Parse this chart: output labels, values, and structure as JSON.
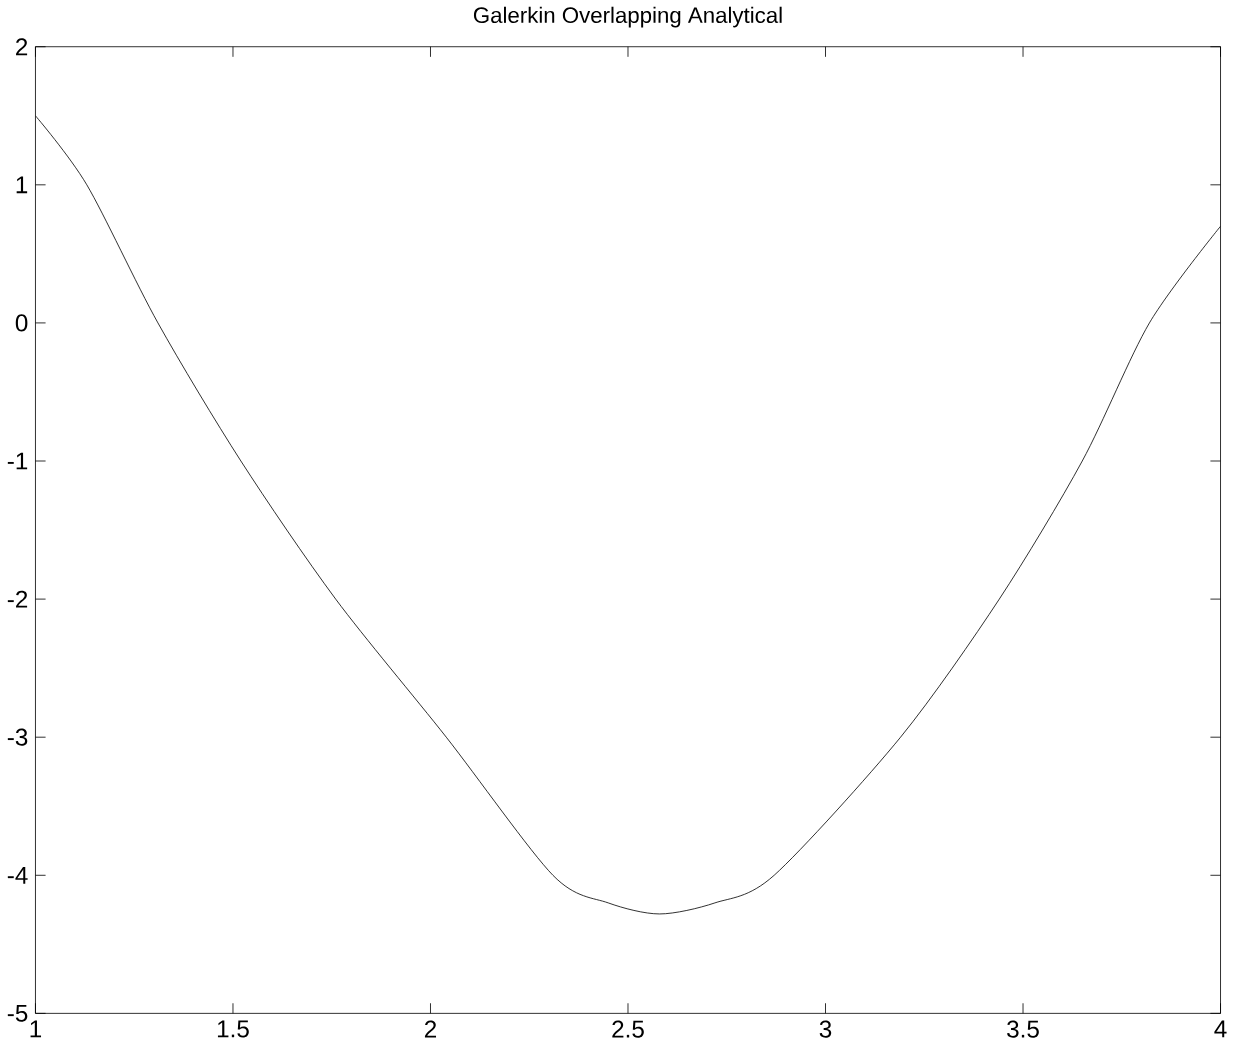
{
  "chart_data": {
    "type": "line",
    "title": "Galerkin Overlapping Analytical",
    "x": [
      1,
      1.13,
      1.31,
      1.52,
      1.76,
      2.04,
      2.31,
      2.45,
      2.58,
      2.72,
      2.87,
      3.19,
      3.44,
      3.65,
      3.82,
      4
    ],
    "values": [
      1.5,
      1,
      0,
      -1,
      -2,
      -3,
      -4,
      -4.2,
      -4.28,
      -4.2,
      -4,
      -3,
      -2,
      -1,
      0,
      0.7
    ],
    "color": "#000000",
    "xlim": [
      1,
      4
    ],
    "ylim": [
      -5,
      2
    ],
    "xticks": [
      1,
      1.5,
      2,
      2.5,
      3,
      3.5,
      4
    ],
    "yticks": [
      -5,
      -4,
      -3,
      -2,
      -1,
      0,
      1,
      2
    ],
    "grid": false,
    "marker": "none",
    "line_style": "solid"
  }
}
